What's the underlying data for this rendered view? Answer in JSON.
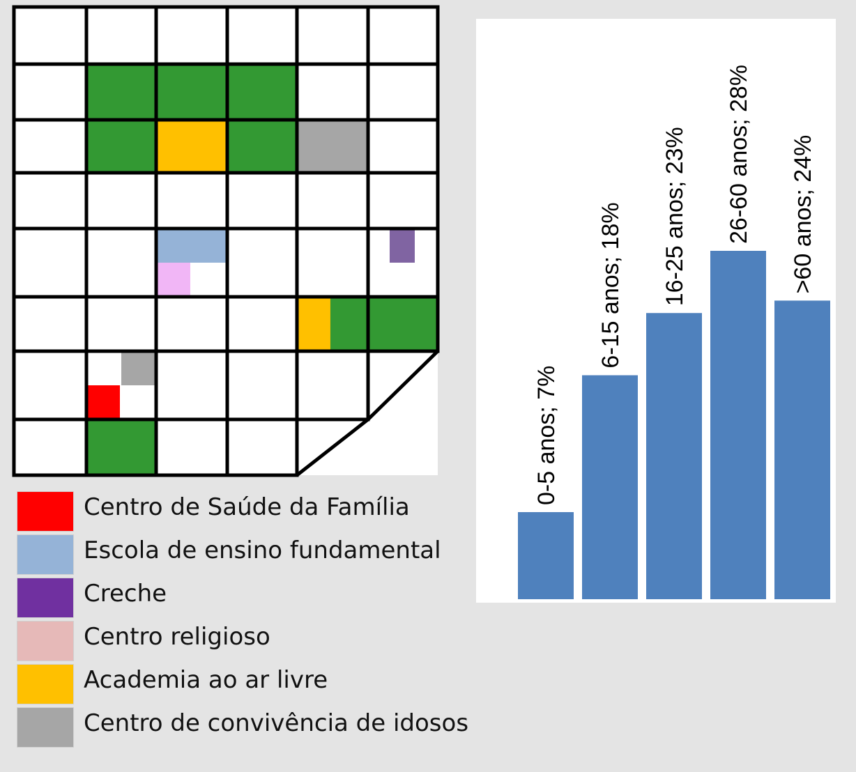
{
  "map": {
    "cols": 6,
    "rows": 8,
    "fills": [
      {
        "type": "area-verde",
        "color": "#339933",
        "cells": [
          [
            1,
            1
          ],
          [
            1,
            2
          ],
          [
            1,
            3
          ],
          [
            2,
            1
          ]
        ]
      },
      {
        "type": "area-verde",
        "color": "#339933",
        "cells": [
          [
            2,
            3
          ]
        ]
      },
      {
        "type": "area-verde",
        "color": "#339933",
        "cells": [
          [
            5,
            4
          ],
          [
            5,
            5
          ]
        ]
      },
      {
        "type": "area-verde",
        "color": "#339933",
        "cells": [
          [
            7,
            1
          ]
        ]
      },
      {
        "type": "academia",
        "color": "#ffc000",
        "cells": [
          [
            2,
            2
          ]
        ]
      },
      {
        "type": "academia",
        "color": "#ffc000",
        "cells": [
          [
            5,
            4
          ]
        ],
        "part": "left-half"
      },
      {
        "type": "idosos",
        "color": "#a6a6a6",
        "cells": [
          [
            2,
            4
          ]
        ]
      },
      {
        "type": "idosos",
        "color": "#a6a6a6",
        "cells": [
          [
            6,
            1
          ]
        ],
        "part": "top-right-quarter"
      },
      {
        "type": "escola",
        "color": "#95b3d7",
        "cells": [
          [
            4,
            2
          ]
        ],
        "part": "top-half"
      },
      {
        "type": "religioso",
        "color": "#f1b6f6",
        "cells": [
          [
            4,
            2
          ]
        ],
        "part": "bottom-left-quarter"
      },
      {
        "type": "creche",
        "color": "#8064a2",
        "cells": [
          [
            4,
            5
          ]
        ],
        "part": "small-top-center"
      },
      {
        "type": "saude",
        "color": "#ff0000",
        "cells": [
          [
            6,
            1
          ]
        ],
        "part": "bottom-left-quarter"
      }
    ]
  },
  "legend": [
    {
      "label": "Centro de Saúde da Família",
      "color": "#ff0000"
    },
    {
      "label": "Escola de ensino fundamental",
      "color": "#95b3d7"
    },
    {
      "label": "Creche",
      "color": "#7030a0"
    },
    {
      "label": "Centro religioso",
      "color": "#e6b9b8"
    },
    {
      "label": "Academia ao ar livre",
      "color": "#ffc000"
    },
    {
      "label": "Centro de convivência de idosos",
      "color": "#a6a6a6"
    }
  ],
  "chart_data": {
    "type": "bar",
    "categories": [
      "0-5 anos",
      "6-15 anos",
      "16-25 anos",
      "26-60 anos",
      ">60 anos"
    ],
    "values": [
      7,
      18,
      23,
      28,
      24
    ],
    "data_labels": [
      "0-5 anos; 7%",
      "6-15 anos; 18%",
      "16-25 anos; 23%",
      "26-60 anos; 28%",
      ">60 anos; 24%"
    ],
    "unit": "%",
    "ylim": [
      0,
      28
    ],
    "bar_color": "#4f81bd",
    "title": "",
    "xlabel": "",
    "ylabel": "",
    "axes_visible": false,
    "grid": false
  }
}
